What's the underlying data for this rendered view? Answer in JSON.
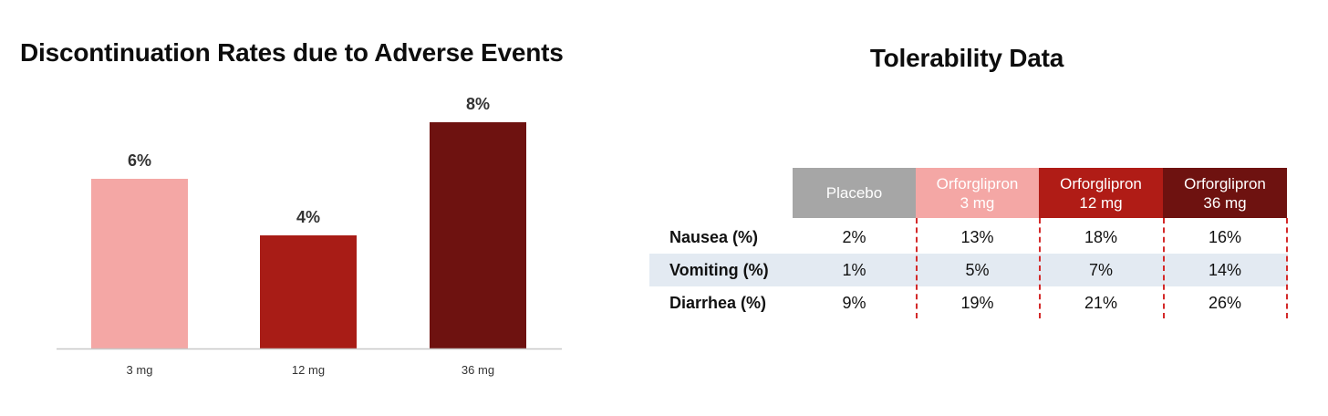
{
  "chart_data": [
    {
      "type": "bar",
      "title": "Discontinuation Rates due to Adverse Events",
      "categories": [
        "3 mg",
        "12 mg",
        "36 mg"
      ],
      "values": [
        6,
        4,
        8
      ],
      "value_labels": [
        "6%",
        "4%",
        "8%"
      ],
      "colors": [
        "#f4a7a5",
        "#a81c16",
        "#6e1210"
      ],
      "ylim": [
        0,
        8
      ],
      "grid": false,
      "xlabel": "",
      "ylabel": ""
    },
    {
      "type": "table",
      "title": "Tolerability Data",
      "columns": [
        {
          "lines": [
            "Placebo"
          ],
          "color": "#a6a6a6"
        },
        {
          "lines": [
            "Orforglipron",
            "3 mg"
          ],
          "color": "#f4a7a5"
        },
        {
          "lines": [
            "Orforglipron",
            "12 mg"
          ],
          "color": "#b01c16"
        },
        {
          "lines": [
            "Orforglipron",
            "36 mg"
          ],
          "color": "#6e1210"
        }
      ],
      "rows": [
        {
          "label": "Nausea (%)",
          "values": [
            "2%",
            "13%",
            "18%",
            "16%"
          ]
        },
        {
          "label": "Vomiting (%)",
          "values": [
            "1%",
            "5%",
            "7%",
            "14%"
          ]
        },
        {
          "label": "Diarrhea (%)",
          "values": [
            "9%",
            "19%",
            "21%",
            "26%"
          ]
        }
      ]
    }
  ]
}
